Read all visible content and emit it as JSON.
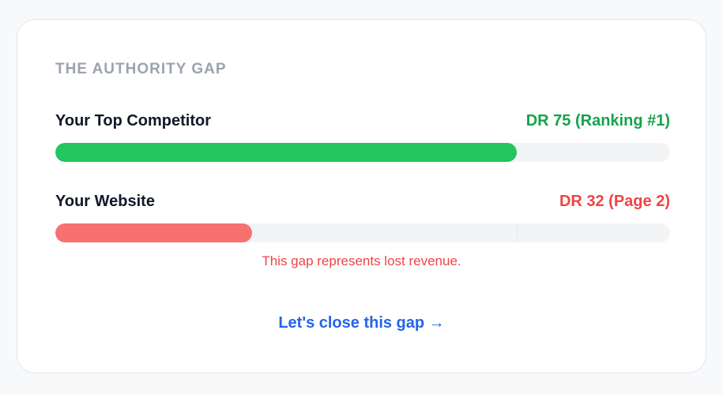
{
  "title": "THE AUTHORITY GAP",
  "competitor": {
    "label": "Your Top Competitor",
    "value_text": "DR 75 (Ranking #1)",
    "value": 75,
    "color": "#22c55e",
    "text_color": "#16a34a"
  },
  "website": {
    "label": "Your Website",
    "value_text": "DR 32 (Page 2)",
    "value": 32,
    "color": "#f87171",
    "text_color": "#ef4444"
  },
  "scale_max": 100,
  "note": "This gap represents lost revenue.",
  "cta": "Let's close this gap →"
}
